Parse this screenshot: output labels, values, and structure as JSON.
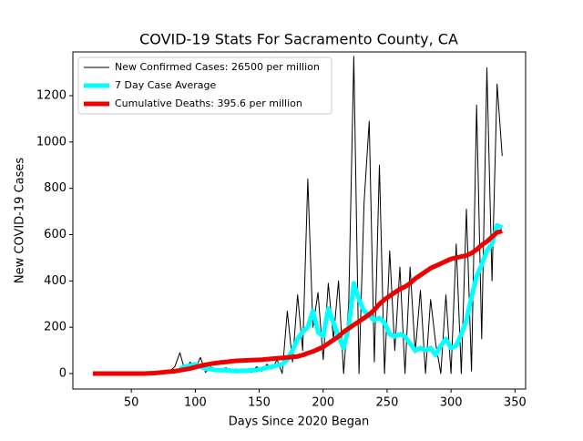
{
  "chart_data": {
    "type": "line",
    "title": "COVID-19 Stats For Sacramento County, CA",
    "xlabel": "Days Since 2020 Began",
    "ylabel": "New COVID-19 Cases",
    "xlim": [
      4.3,
      358.3
    ],
    "ylim": [
      -67,
      1389
    ],
    "xticks": [
      50,
      100,
      150,
      200,
      250,
      300,
      350
    ],
    "yticks": [
      0,
      200,
      400,
      600,
      800,
      1000,
      1200
    ],
    "legend": "upper left",
    "grid": false,
    "x": [
      20,
      24,
      28,
      32,
      36,
      40,
      44,
      48,
      52,
      56,
      60,
      64,
      68,
      72,
      76,
      80,
      84,
      88,
      92,
      96,
      100,
      104,
      108,
      112,
      116,
      120,
      124,
      128,
      132,
      136,
      140,
      144,
      148,
      152,
      156,
      160,
      164,
      168,
      172,
      176,
      180,
      184,
      188,
      192,
      196,
      200,
      204,
      208,
      212,
      216,
      220,
      224,
      228,
      232,
      236,
      240,
      244,
      248,
      252,
      256,
      260,
      264,
      268,
      272,
      276,
      280,
      284,
      288,
      292,
      296,
      300,
      304,
      308,
      312,
      316,
      320,
      324,
      328,
      332,
      336,
      340
    ],
    "series": [
      {
        "name": "New Confirmed Cases: 26500 per million",
        "color": "#000000",
        "width": 1,
        "values": [
          null,
          null,
          null,
          null,
          null,
          null,
          null,
          null,
          null,
          null,
          null,
          null,
          null,
          null,
          null,
          10,
          30,
          90,
          10,
          50,
          20,
          70,
          5,
          30,
          20,
          15,
          25,
          10,
          20,
          10,
          20,
          5,
          30,
          10,
          40,
          20,
          60,
          0,
          270,
          50,
          340,
          100,
          840,
          200,
          350,
          60,
          390,
          150,
          400,
          0,
          300,
          1370,
          0,
          740,
          1090,
          50,
          900,
          0,
          530,
          100,
          460,
          0,
          460,
          90,
          360,
          0,
          320,
          130,
          0,
          340,
          0,
          560,
          0,
          710,
          10,
          1160,
          150,
          1320,
          400,
          1250,
          940
        ]
      },
      {
        "name": "7 Day Case Average",
        "color": "#00ffff",
        "width": 5,
        "values": [
          null,
          null,
          null,
          null,
          null,
          null,
          null,
          null,
          null,
          null,
          null,
          null,
          null,
          null,
          null,
          null,
          null,
          20,
          30,
          35,
          40,
          30,
          20,
          20,
          15,
          15,
          15,
          12,
          10,
          12,
          12,
          15,
          15,
          20,
          25,
          30,
          35,
          40,
          60,
          100,
          150,
          180,
          200,
          270,
          180,
          160,
          280,
          220,
          160,
          110,
          200,
          390,
          320,
          270,
          250,
          230,
          240,
          220,
          170,
          160,
          170,
          160,
          130,
          100,
          110,
          100,
          110,
          80,
          120,
          150,
          110,
          120,
          170,
          230,
          330,
          420,
          470,
          530,
          560,
          640,
          630
        ]
      },
      {
        "name": "Cumulative Deaths: 395.6 per million",
        "color": "#ee0000",
        "width": 5,
        "values": [
          0,
          0,
          0,
          0,
          0,
          0,
          0,
          0,
          0,
          0,
          0,
          1,
          2,
          4,
          6,
          8,
          10,
          14,
          18,
          22,
          28,
          33,
          38,
          42,
          45,
          48,
          50,
          53,
          55,
          56,
          57,
          58,
          59,
          60,
          62,
          64,
          66,
          68,
          70,
          72,
          74,
          80,
          88,
          95,
          105,
          115,
          130,
          145,
          160,
          180,
          195,
          210,
          225,
          240,
          255,
          275,
          300,
          320,
          335,
          350,
          365,
          375,
          390,
          410,
          425,
          440,
          455,
          465,
          475,
          485,
          495,
          500,
          505,
          510,
          520,
          535,
          555,
          570,
          590,
          610,
          615
        ]
      }
    ]
  }
}
